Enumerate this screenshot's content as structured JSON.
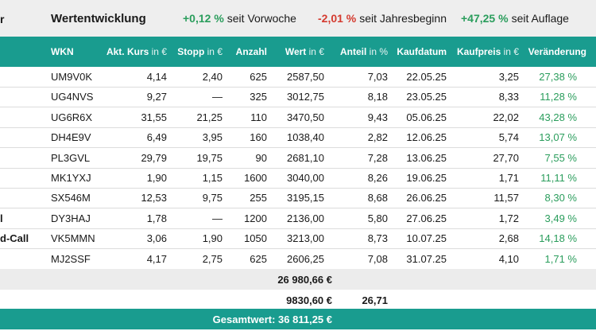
{
  "performance": {
    "edge_mark": "r",
    "title": "Wertentwicklung",
    "week": {
      "value": "+0,12 %",
      "label": "seit Vorwoche"
    },
    "year": {
      "value": "-2,01 %",
      "label": "seit Jahresbeginn"
    },
    "inception": {
      "value": "+47,25 %",
      "label": "seit Auflage"
    },
    "colors": {
      "positive": "#2a9d5c",
      "negative": "#d43a2f",
      "accent": "#199c8f"
    }
  },
  "table": {
    "headers": [
      {
        "label": "WKN",
        "unit": ""
      },
      {
        "label": "Akt. Kurs",
        "unit": "in €"
      },
      {
        "label": "Stopp",
        "unit": "in €"
      },
      {
        "label": "Anzahl",
        "unit": ""
      },
      {
        "label": "Wert",
        "unit": "in €"
      },
      {
        "label": "Anteil",
        "unit": "in %"
      },
      {
        "label": "Kaufdatum",
        "unit": ""
      },
      {
        "label": "Kaufpreis",
        "unit": "in €"
      },
      {
        "label": "Veränderung",
        "unit": ""
      }
    ],
    "rows": [
      {
        "side": "",
        "wkn": "UM9V0K",
        "kurs": "4,14",
        "stopp": "2,40",
        "anzahl": "625",
        "wert": "2587,50",
        "anteil": "7,03",
        "datum": "22.05.25",
        "kaufpreis": "3,25",
        "veraenderung": "27,38 %"
      },
      {
        "side": "",
        "wkn": "UG4NVS",
        "kurs": "9,27",
        "stopp": "—",
        "anzahl": "325",
        "wert": "3012,75",
        "anteil": "8,18",
        "datum": "23.05.25",
        "kaufpreis": "8,33",
        "veraenderung": "11,28 %"
      },
      {
        "side": "",
        "wkn": "UG6R6X",
        "kurs": "31,55",
        "stopp": "21,25",
        "anzahl": "110",
        "wert": "3470,50",
        "anteil": "9,43",
        "datum": "05.06.25",
        "kaufpreis": "22,02",
        "veraenderung": "43,28 %"
      },
      {
        "side": "",
        "wkn": "DH4E9V",
        "kurs": "6,49",
        "stopp": "3,95",
        "anzahl": "160",
        "wert": "1038,40",
        "anteil": "2,82",
        "datum": "12.06.25",
        "kaufpreis": "5,74",
        "veraenderung": "13,07 %"
      },
      {
        "side": "",
        "wkn": "PL3GVL",
        "kurs": "29,79",
        "stopp": "19,75",
        "anzahl": "90",
        "wert": "2681,10",
        "anteil": "7,28",
        "datum": "13.06.25",
        "kaufpreis": "27,70",
        "veraenderung": "7,55 %"
      },
      {
        "side": "",
        "wkn": "MK1YXJ",
        "kurs": "1,90",
        "stopp": "1,15",
        "anzahl": "1600",
        "wert": "3040,00",
        "anteil": "8,26",
        "datum": "19.06.25",
        "kaufpreis": "1,71",
        "veraenderung": "11,11 %"
      },
      {
        "side": "",
        "wkn": "SX546M",
        "kurs": "12,53",
        "stopp": "9,75",
        "anzahl": "255",
        "wert": "3195,15",
        "anteil": "8,68",
        "datum": "26.06.25",
        "kaufpreis": "11,57",
        "veraenderung": "8,30 %"
      },
      {
        "side": "l",
        "wkn": "DY3HAJ",
        "kurs": "1,78",
        "stopp": "—",
        "anzahl": "1200",
        "wert": "2136,00",
        "anteil": "5,80",
        "datum": "27.06.25",
        "kaufpreis": "1,72",
        "veraenderung": "3,49 %"
      },
      {
        "side": "d-Call",
        "wkn": "VK5MMN",
        "kurs": "3,06",
        "stopp": "1,90",
        "anzahl": "1050",
        "wert": "3213,00",
        "anteil": "8,73",
        "datum": "10.07.25",
        "kaufpreis": "2,68",
        "veraenderung": "14,18 %"
      },
      {
        "side": "",
        "wkn": "MJ2SSF",
        "kurs": "4,17",
        "stopp": "2,75",
        "anzahl": "625",
        "wert": "2606,25",
        "anteil": "7,08",
        "datum": "31.07.25",
        "kaufpreis": "4,10",
        "veraenderung": "1,71 %"
      }
    ]
  },
  "totals": {
    "invested_value": "26 980,66 €",
    "cash_value": "9830,60 €",
    "cash_share": "26,71",
    "grand_total": "Gesamtwert: 36 811,25 €"
  }
}
